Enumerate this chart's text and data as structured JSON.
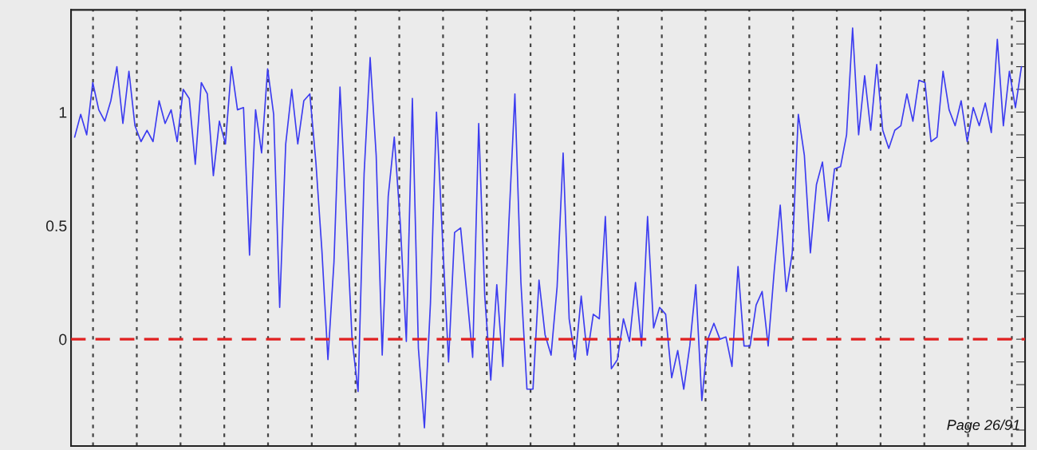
{
  "chart_data": {
    "type": "line",
    "categories": [
      null,
      null,
      null,
      null,
      null,
      null,
      null,
      null,
      null,
      null,
      null,
      null,
      null,
      null,
      null,
      null,
      null,
      null,
      null,
      null,
      null,
      null,
      null,
      null,
      null,
      null,
      null,
      null,
      null,
      null,
      null,
      null,
      null,
      null,
      null,
      null,
      null,
      null,
      null,
      null,
      null,
      null,
      null,
      null,
      null,
      null,
      null,
      null,
      null,
      null,
      null,
      null,
      null,
      null,
      null,
      null,
      null,
      null,
      null,
      null,
      null,
      null,
      null,
      null,
      null,
      null,
      null,
      null,
      null,
      null,
      null,
      null,
      null,
      null,
      null,
      null,
      null,
      null,
      null,
      null,
      null,
      null,
      null,
      null,
      null,
      null,
      null,
      null,
      null,
      null,
      null,
      null,
      null,
      null,
      null,
      null,
      null,
      null,
      null,
      null,
      null,
      null,
      null,
      null,
      null,
      null,
      null,
      null,
      null,
      null,
      null,
      null,
      null,
      null,
      null,
      null,
      null,
      null,
      null,
      null,
      null,
      null,
      null,
      null,
      null,
      null,
      null,
      null,
      null,
      null,
      null,
      null,
      null,
      null,
      null,
      null,
      null,
      null,
      null,
      null,
      null,
      null,
      null,
      null,
      null,
      null,
      null,
      null,
      null,
      null,
      null,
      null,
      null,
      null,
      null,
      null,
      null,
      null
    ],
    "ylim": [
      -0.47,
      1.45
    ],
    "yticks": [
      {
        "value": -0.4,
        "label": null
      },
      {
        "value": -0.3,
        "label": null
      },
      {
        "value": -0.2,
        "label": null
      },
      {
        "value": -0.1,
        "label": null
      },
      0,
      {
        "value": 0.1,
        "label": null
      },
      {
        "value": 0.2,
        "label": null
      },
      {
        "value": 0.3,
        "label": null
      },
      {
        "value": 0.4,
        "label": null
      },
      0.5,
      {
        "value": 0.6,
        "label": null
      },
      {
        "value": 0.7,
        "label": null
      },
      {
        "value": 0.8,
        "label": null
      },
      {
        "value": 0.9,
        "label": null
      },
      1,
      {
        "value": 1.1,
        "label": null
      },
      {
        "value": 1.2,
        "label": null
      },
      {
        "value": 1.3,
        "label": null
      },
      {
        "value": 1.4,
        "label": null
      }
    ],
    "tick_labels": "y",
    "grid": "x",
    "line_style": "solid",
    "ref_lines": [
      {
        "axis": "y",
        "value": 0,
        "color": "#e02020",
        "line_style": "dashed"
      }
    ],
    "annotations": [
      "Page 26/91"
    ],
    "series": [
      {
        "color": "#3c3cf0",
        "values": [
          0.89,
          0.99,
          0.9,
          1.13,
          1.01,
          0.96,
          1.05,
          1.2,
          0.95,
          1.18,
          0.94,
          0.87,
          0.92,
          0.87,
          1.05,
          0.95,
          1.01,
          0.87,
          1.1,
          1.06,
          0.77,
          1.13,
          1.08,
          0.72,
          0.96,
          0.86,
          1.2,
          1.01,
          1.02,
          0.37,
          1.01,
          0.82,
          1.19,
          0.99,
          0.14,
          0.86,
          1.1,
          0.86,
          1.05,
          1.08,
          0.78,
          0.39,
          -0.09,
          0.34,
          1.11,
          0.56,
          0.0,
          -0.23,
          0.73,
          1.24,
          0.81,
          -0.07,
          0.63,
          0.89,
          0.51,
          -0.01,
          1.06,
          -0.04,
          -0.39,
          0.16,
          1.0,
          0.44,
          -0.1,
          0.47,
          0.49,
          0.21,
          -0.08,
          0.95,
          0.19,
          -0.18,
          0.24,
          -0.12,
          0.51,
          1.08,
          0.25,
          -0.22,
          -0.22,
          0.26,
          0.02,
          -0.07,
          0.23,
          0.82,
          0.09,
          -0.09,
          0.19,
          -0.07,
          0.11,
          0.09,
          0.54,
          -0.13,
          -0.09,
          0.09,
          -0.01,
          0.25,
          -0.03,
          0.54,
          0.05,
          0.14,
          0.11,
          -0.17,
          -0.05,
          -0.22,
          -0.03,
          0.24,
          -0.27,
          0.0,
          0.07,
          0.0,
          0.01,
          -0.12,
          0.32,
          -0.03,
          -0.03,
          0.15,
          0.21,
          -0.03,
          0.3,
          0.59,
          0.21,
          0.38,
          0.99,
          0.81,
          0.38,
          0.68,
          0.78,
          0.52,
          0.75,
          0.76,
          0.9,
          1.37,
          0.9,
          1.16,
          0.92,
          1.21,
          0.92,
          0.84,
          0.92,
          0.94,
          1.08,
          0.96,
          1.14,
          1.13,
          0.87,
          0.89,
          1.18,
          1.01,
          0.94,
          1.05,
          0.87,
          1.02,
          0.94,
          1.04,
          0.91,
          1.32,
          0.94,
          1.18,
          1.02,
          1.2
        ]
      }
    ]
  }
}
